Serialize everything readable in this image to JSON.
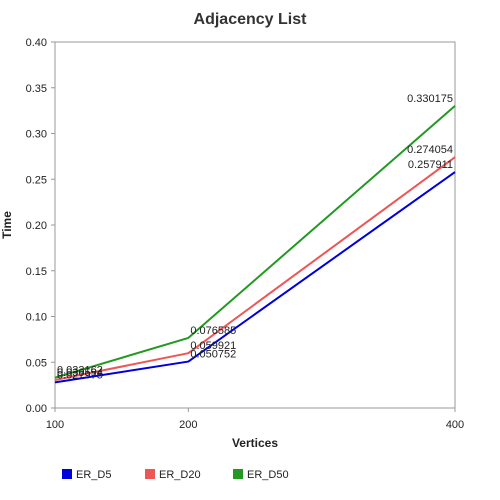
{
  "chart_data": {
    "type": "line",
    "title": "Adjacency List",
    "xlabel": "Vertices",
    "ylabel": "Time",
    "x": [
      100,
      200,
      400
    ],
    "xlim": [
      100,
      400
    ],
    "ylim": [
      0,
      0.4
    ],
    "x_ticks": [
      "100",
      "200",
      "400"
    ],
    "y_ticks": [
      "0.00",
      "0.05",
      "0.10",
      "0.15",
      "0.20",
      "0.25",
      "0.30",
      "0.35",
      "0.40"
    ],
    "grid": false,
    "legend_position": "bottom-left",
    "series": [
      {
        "name": "ER_D5",
        "color": "#0000dd",
        "values": [
          0.027975,
          0.050752,
          0.257911
        ],
        "labels": [
          "0.027975",
          "0.050752",
          "0.257911"
        ]
      },
      {
        "name": "ER_D20",
        "color": "#ee5555",
        "values": [
          0.030594,
          0.059921,
          0.274054
        ],
        "labels": [
          "0.030594",
          "0.059921",
          "0.274054"
        ]
      },
      {
        "name": "ER_D50",
        "color": "#229922",
        "values": [
          0.033162,
          0.076585,
          0.330175
        ],
        "labels": [
          "0.033162",
          "0.076585",
          "0.330175"
        ]
      }
    ]
  }
}
